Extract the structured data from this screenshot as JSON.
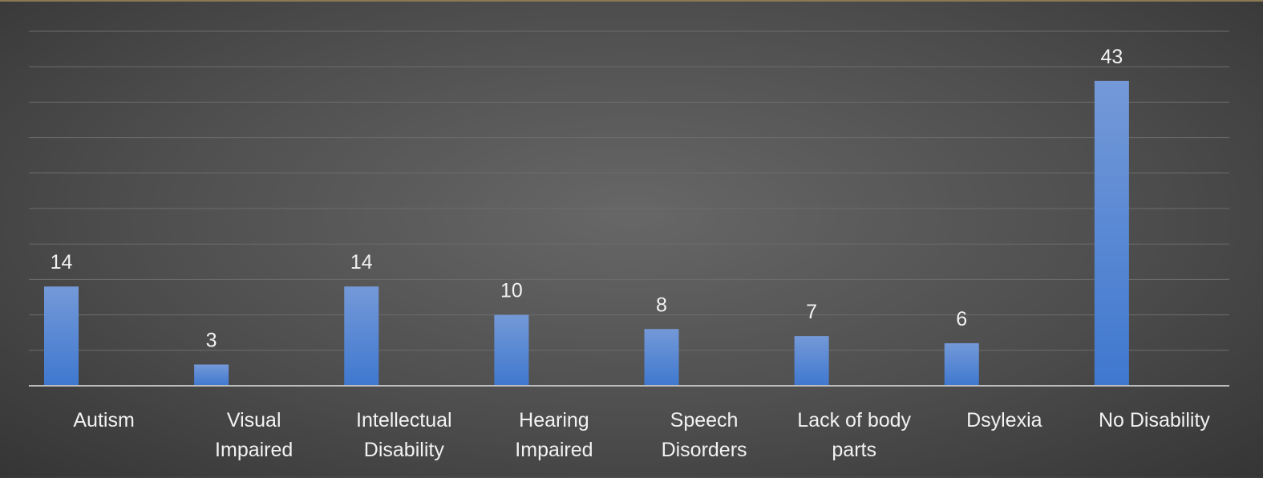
{
  "chart_data": {
    "type": "bar",
    "categories": [
      [
        "Autism"
      ],
      [
        "Visual",
        "Impaired"
      ],
      [
        "Intellectual",
        "Disability"
      ],
      [
        "Hearing",
        "Impaired"
      ],
      [
        "Speech",
        "Disorders"
      ],
      [
        "Lack of body",
        "parts"
      ],
      [
        "Dsylexia"
      ],
      [
        "No Disability"
      ]
    ],
    "values": [
      14,
      3,
      14,
      10,
      8,
      7,
      6,
      43
    ],
    "data_labels": [
      "14",
      "3",
      "14",
      "10",
      "8",
      "7",
      "6",
      "43"
    ],
    "title": "",
    "xlabel": "",
    "ylabel": "",
    "ylim": [
      0,
      50
    ],
    "grid": true,
    "legend": "none",
    "colors": {
      "bar_top": "#7499d8",
      "bar_bottom": "#3f78cf"
    }
  }
}
